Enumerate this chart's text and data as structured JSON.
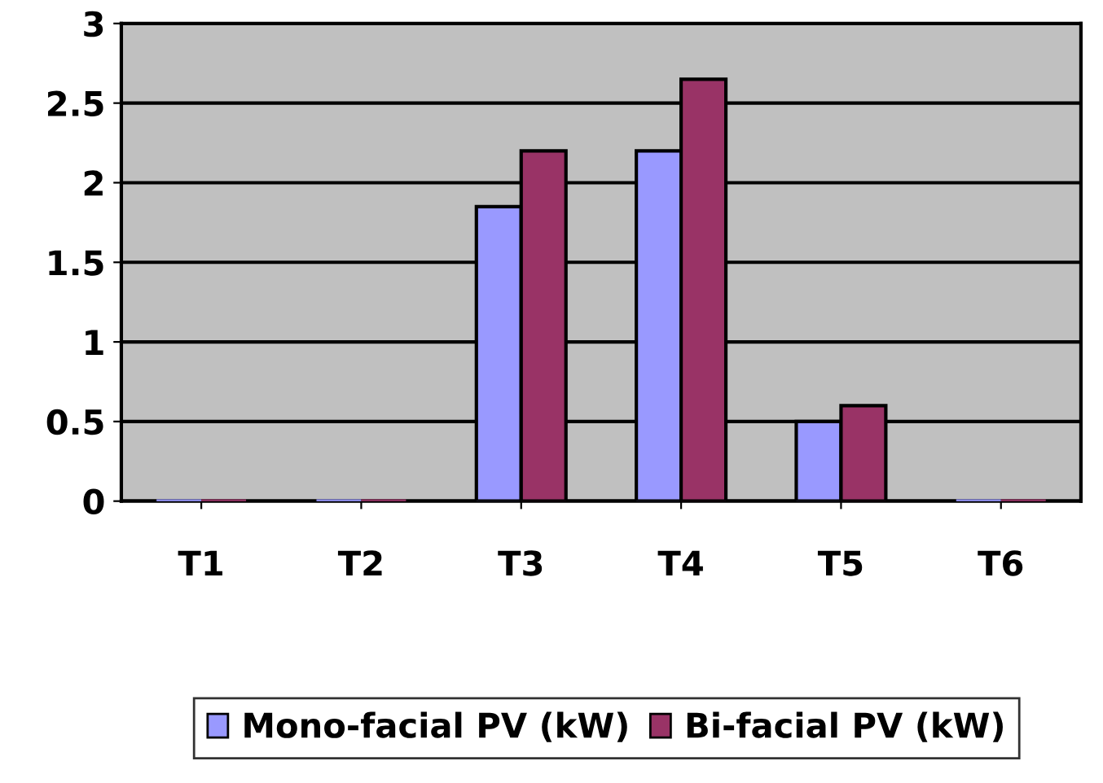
{
  "chart_data": {
    "type": "bar",
    "categories": [
      "T1",
      "T2",
      "T3",
      "T4",
      "T5",
      "T6"
    ],
    "series": [
      {
        "name": "Mono-facial PV (kW)",
        "color": "#9999ff",
        "values": [
          0,
          0,
          1.85,
          2.2,
          0.5,
          0
        ]
      },
      {
        "name": "Bi-facial PV (kW)",
        "color": "#993366",
        "values": [
          0,
          0,
          2.2,
          2.65,
          0.6,
          0
        ]
      }
    ],
    "ylim": [
      0,
      3
    ],
    "yticks": [
      0,
      0.5,
      1,
      1.5,
      2,
      2.5,
      3
    ],
    "grid": "y",
    "legend": "bottom"
  }
}
